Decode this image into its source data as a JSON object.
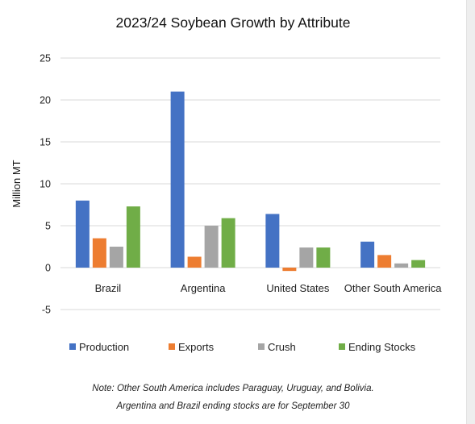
{
  "chart_data": {
    "type": "bar",
    "title": "2023/24 Soybean Growth by Attribute",
    "ylabel": "Million MT",
    "xlabel": "",
    "ylim": [
      -5,
      25
    ],
    "yticks": [
      -5,
      0,
      5,
      10,
      15,
      20,
      25
    ],
    "grid": true,
    "legend_position": "bottom",
    "categories": [
      "Brazil",
      "Argentina",
      "United States",
      "Other South America"
    ],
    "series": [
      {
        "name": "Production",
        "color": "#4472c4",
        "values": [
          8.0,
          21.0,
          6.4,
          3.1
        ]
      },
      {
        "name": "Exports",
        "color": "#ed7d31",
        "values": [
          3.5,
          1.3,
          -0.4,
          1.5
        ]
      },
      {
        "name": "Crush",
        "color": "#a5a5a5",
        "values": [
          2.5,
          5.0,
          2.4,
          0.5
        ]
      },
      {
        "name": "Ending Stocks",
        "color": "#70ad47",
        "values": [
          7.3,
          5.9,
          2.4,
          0.9
        ]
      }
    ]
  },
  "notes": {
    "line1": "Note: Other South America includes Paraguay, Uruguay, and Bolivia.",
    "line2": "Argentina and Brazil ending stocks are for September 30"
  }
}
